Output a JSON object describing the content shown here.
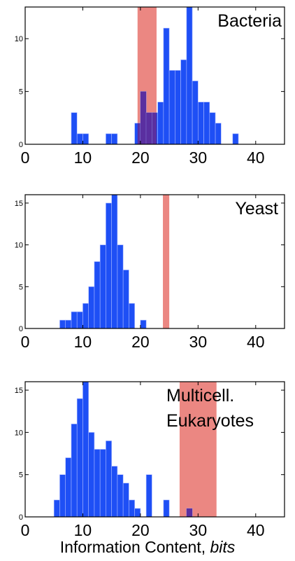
{
  "chart_data": [
    {
      "type": "bar",
      "title": "Bacteria",
      "xlabel": "",
      "ylabel": "",
      "xlim": [
        0,
        45
      ],
      "ylim": [
        0,
        13
      ],
      "xticks": [
        "0",
        "10",
        "20",
        "30",
        "40"
      ],
      "yticks": [
        "0",
        "5",
        "10"
      ],
      "bin_width": 1,
      "bins": [
        {
          "x": 8,
          "y": 3
        },
        {
          "x": 9,
          "y": 1
        },
        {
          "x": 10,
          "y": 1
        },
        {
          "x": 14,
          "y": 1
        },
        {
          "x": 15,
          "y": 1
        },
        {
          "x": 19,
          "y": 2
        },
        {
          "x": 20,
          "y": 5
        },
        {
          "x": 21,
          "y": 3
        },
        {
          "x": 22,
          "y": 3
        },
        {
          "x": 23,
          "y": 4
        },
        {
          "x": 24,
          "y": 11
        },
        {
          "x": 25,
          "y": 7
        },
        {
          "x": 26,
          "y": 7
        },
        {
          "x": 27,
          "y": 8
        },
        {
          "x": 28,
          "y": 13
        },
        {
          "x": 29,
          "y": 6
        },
        {
          "x": 30,
          "y": 4
        },
        {
          "x": 31,
          "y": 4
        },
        {
          "x": 32,
          "y": 3
        },
        {
          "x": 33,
          "y": 2
        },
        {
          "x": 36,
          "y": 1
        }
      ],
      "highlight_band": [
        19.5,
        22.8
      ],
      "colors": {
        "bars": "#1e4ff5",
        "band": "#e8726c",
        "overlap": "#5a2fa0"
      }
    },
    {
      "type": "bar",
      "title": "Yeast",
      "xlabel": "",
      "ylabel": "",
      "xlim": [
        0,
        45
      ],
      "ylim": [
        0,
        16
      ],
      "xticks": [
        "0",
        "10",
        "20",
        "30",
        "40"
      ],
      "yticks": [
        "0",
        "5",
        "10",
        "15"
      ],
      "bin_width": 1,
      "bins": [
        {
          "x": 6,
          "y": 1
        },
        {
          "x": 7,
          "y": 1
        },
        {
          "x": 8,
          "y": 2
        },
        {
          "x": 9,
          "y": 2
        },
        {
          "x": 10,
          "y": 3
        },
        {
          "x": 11,
          "y": 5
        },
        {
          "x": 12,
          "y": 8
        },
        {
          "x": 13,
          "y": 10
        },
        {
          "x": 14,
          "y": 15
        },
        {
          "x": 15,
          "y": 16
        },
        {
          "x": 16,
          "y": 10
        },
        {
          "x": 17,
          "y": 7
        },
        {
          "x": 18,
          "y": 3
        },
        {
          "x": 20,
          "y": 1
        }
      ],
      "highlight_band": [
        23.9,
        25.0
      ],
      "colors": {
        "bars": "#1e4ff5",
        "band": "#e8726c",
        "overlap": "#5a2fa0"
      }
    },
    {
      "type": "bar",
      "title": "Multicell. Eukaryotes",
      "title_lines": [
        "Multicell.",
        "Eukaryotes"
      ],
      "xlabel": "Information Content, bits",
      "xlabel_main": "Information Content, ",
      "xlabel_unit": "bits",
      "ylabel": "",
      "xlim": [
        0,
        45
      ],
      "ylim": [
        0,
        16
      ],
      "xticks": [
        "0",
        "10",
        "20",
        "30",
        "40"
      ],
      "yticks": [
        "0",
        "5",
        "10",
        "15"
      ],
      "bin_width": 1,
      "bins": [
        {
          "x": 5,
          "y": 2
        },
        {
          "x": 6,
          "y": 5
        },
        {
          "x": 7,
          "y": 7
        },
        {
          "x": 8,
          "y": 11
        },
        {
          "x": 9,
          "y": 14
        },
        {
          "x": 10,
          "y": 16
        },
        {
          "x": 11,
          "y": 10
        },
        {
          "x": 12,
          "y": 8
        },
        {
          "x": 13,
          "y": 8
        },
        {
          "x": 14,
          "y": 9
        },
        {
          "x": 15,
          "y": 6
        },
        {
          "x": 16,
          "y": 5
        },
        {
          "x": 17,
          "y": 4
        },
        {
          "x": 18,
          "y": 2
        },
        {
          "x": 19,
          "y": 1
        },
        {
          "x": 21,
          "y": 5
        },
        {
          "x": 24,
          "y": 2
        },
        {
          "x": 28,
          "y": 1
        }
      ],
      "highlight_band": [
        26.8,
        33.2
      ],
      "colors": {
        "bars": "#1e4ff5",
        "band": "#e8726c",
        "overlap": "#5a2fa0"
      }
    }
  ]
}
